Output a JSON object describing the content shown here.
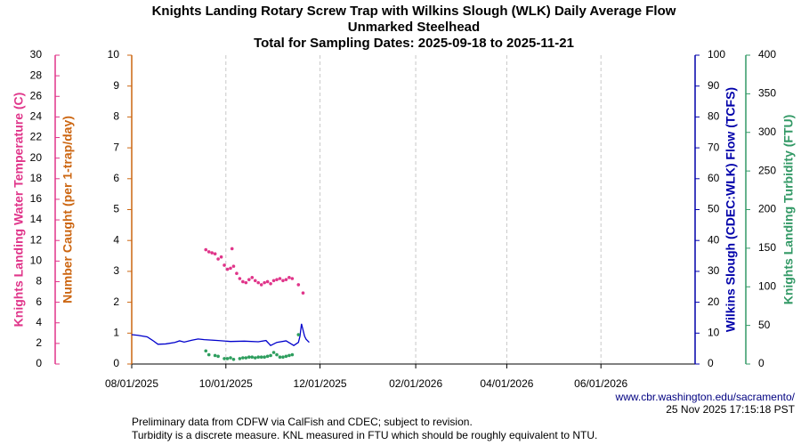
{
  "chart_data": {
    "type": "multi-axis",
    "title": [
      "Knights Landing Rotary Screw Trap with Wilkins Slough (WLK) Daily Average Flow",
      "Unmarked Steelhead",
      "Total for Sampling Dates: 2025-09-18 to 2025-11-21"
    ],
    "xlim": [
      "2025-08-01",
      "2026-08-01"
    ],
    "xticks": [
      {
        "value": "2025-08-01",
        "label": "08/01/2025"
      },
      {
        "value": "2025-10-01",
        "label": "10/01/2025"
      },
      {
        "value": "2025-12-01",
        "label": "12/01/2025"
      },
      {
        "value": "2026-02-01",
        "label": "02/01/2026"
      },
      {
        "value": "2026-04-01",
        "label": "04/01/2026"
      },
      {
        "value": "2026-06-01",
        "label": "06/01/2026"
      }
    ],
    "grid": true,
    "ylabel": "Number Caught (per 1-trap/day)",
    "ylim": [
      0,
      10
    ],
    "yticks": [
      0,
      1,
      2,
      3,
      4,
      5,
      6,
      7,
      8,
      9,
      10
    ],
    "y2label": "Wilkins Slough (CDEC:WLK) Flow (TCFS)",
    "y2lim": [
      0,
      100
    ],
    "y2ticks": [
      0,
      10,
      20,
      30,
      40,
      50,
      60,
      70,
      80,
      90,
      100
    ],
    "y3label": "Knights Landing Water Temperature (C)",
    "y3lim": [
      0,
      30
    ],
    "y3ticks": [
      0,
      2,
      4,
      6,
      8,
      10,
      12,
      14,
      16,
      18,
      20,
      22,
      24,
      26,
      28,
      30
    ],
    "y4label": "Knights Landing Turbidity (FTU)",
    "y4lim": [
      0,
      400
    ],
    "y4ticks": [
      0,
      50,
      100,
      150,
      200,
      250,
      300,
      350,
      400
    ],
    "axis_colors": {
      "y": "#cc6611",
      "y2": "#0000aa",
      "y3": "#e0358a",
      "y4": "#339966"
    },
    "series": [
      {
        "axis": "y2",
        "style": "line",
        "color": "#0000cc",
        "x": [
          "2025-08-01",
          "2025-08-05",
          "2025-08-11",
          "2025-08-15",
          "2025-08-18",
          "2025-08-23",
          "2025-08-29",
          "2025-09-01",
          "2025-09-04",
          "2025-09-09",
          "2025-09-13",
          "2025-09-17",
          "2025-09-26",
          "2025-10-04",
          "2025-10-13",
          "2025-10-22",
          "2025-10-27",
          "2025-10-30",
          "2025-11-03",
          "2025-11-09",
          "2025-11-14",
          "2025-11-17",
          "2025-11-18",
          "2025-11-19",
          "2025-11-21",
          "2025-11-22",
          "2025-11-24"
        ],
        "values": [
          9.5,
          9.3,
          8.8,
          7.5,
          6.4,
          6.5,
          7.0,
          7.5,
          7.1,
          7.7,
          8.1,
          7.9,
          7.6,
          7.3,
          7.4,
          7.2,
          7.6,
          6.0,
          7.0,
          7.5,
          6.0,
          7.0,
          9.0,
          13.0,
          9.0,
          8.0,
          7.0
        ]
      },
      {
        "axis": "y3",
        "style": "points",
        "color": "#e0358a",
        "x": [
          "2025-09-18",
          "2025-09-20",
          "2025-09-22",
          "2025-09-24",
          "2025-09-26",
          "2025-09-28",
          "2025-09-30",
          "2025-10-02",
          "2025-10-04",
          "2025-10-05",
          "2025-10-06",
          "2025-10-08",
          "2025-10-10",
          "2025-10-12",
          "2025-10-14",
          "2025-10-16",
          "2025-10-18",
          "2025-10-20",
          "2025-10-22",
          "2025-10-24",
          "2025-10-26",
          "2025-10-28",
          "2025-10-30",
          "2025-11-01",
          "2025-11-03",
          "2025-11-05",
          "2025-11-07",
          "2025-11-09",
          "2025-11-11",
          "2025-11-13",
          "2025-11-17",
          "2025-11-20"
        ],
        "values": [
          11.1,
          10.9,
          10.8,
          10.7,
          10.2,
          10.4,
          9.6,
          9.2,
          9.3,
          11.2,
          9.5,
          8.8,
          8.3,
          8.0,
          7.9,
          8.2,
          8.4,
          8.1,
          7.9,
          7.7,
          7.9,
          8.0,
          7.8,
          8.1,
          8.2,
          8.3,
          8.1,
          8.2,
          8.4,
          8.3,
          7.7,
          6.9
        ]
      },
      {
        "axis": "y4",
        "style": "points",
        "color": "#2e9e5e",
        "x": [
          "2025-09-18",
          "2025-09-20",
          "2025-09-24",
          "2025-09-26",
          "2025-09-30",
          "2025-10-02",
          "2025-10-04",
          "2025-10-06",
          "2025-10-10",
          "2025-10-12",
          "2025-10-14",
          "2025-10-16",
          "2025-10-18",
          "2025-10-20",
          "2025-10-22",
          "2025-10-24",
          "2025-10-26",
          "2025-10-28",
          "2025-10-30",
          "2025-11-01",
          "2025-11-03",
          "2025-11-05",
          "2025-11-07",
          "2025-11-09",
          "2025-11-11",
          "2025-11-13",
          "2025-11-17"
        ],
        "values": [
          17,
          12,
          11,
          10,
          7,
          7,
          8,
          6,
          7,
          8,
          8,
          9,
          9,
          8,
          9,
          9,
          9,
          10,
          11,
          15,
          12,
          9,
          9,
          10,
          11,
          12,
          38
        ]
      }
    ],
    "source_url": "www.cbr.washington.edu/sacramento/",
    "timestamp": "25 Nov 2025 17:15:18 PST",
    "notes": [
      "Preliminary data from CDFW via CalFish and CDEC; subject to revision.",
      "Turbidity is a discrete measure. KNL measured in FTU which should be roughly equivalent to NTU."
    ]
  }
}
